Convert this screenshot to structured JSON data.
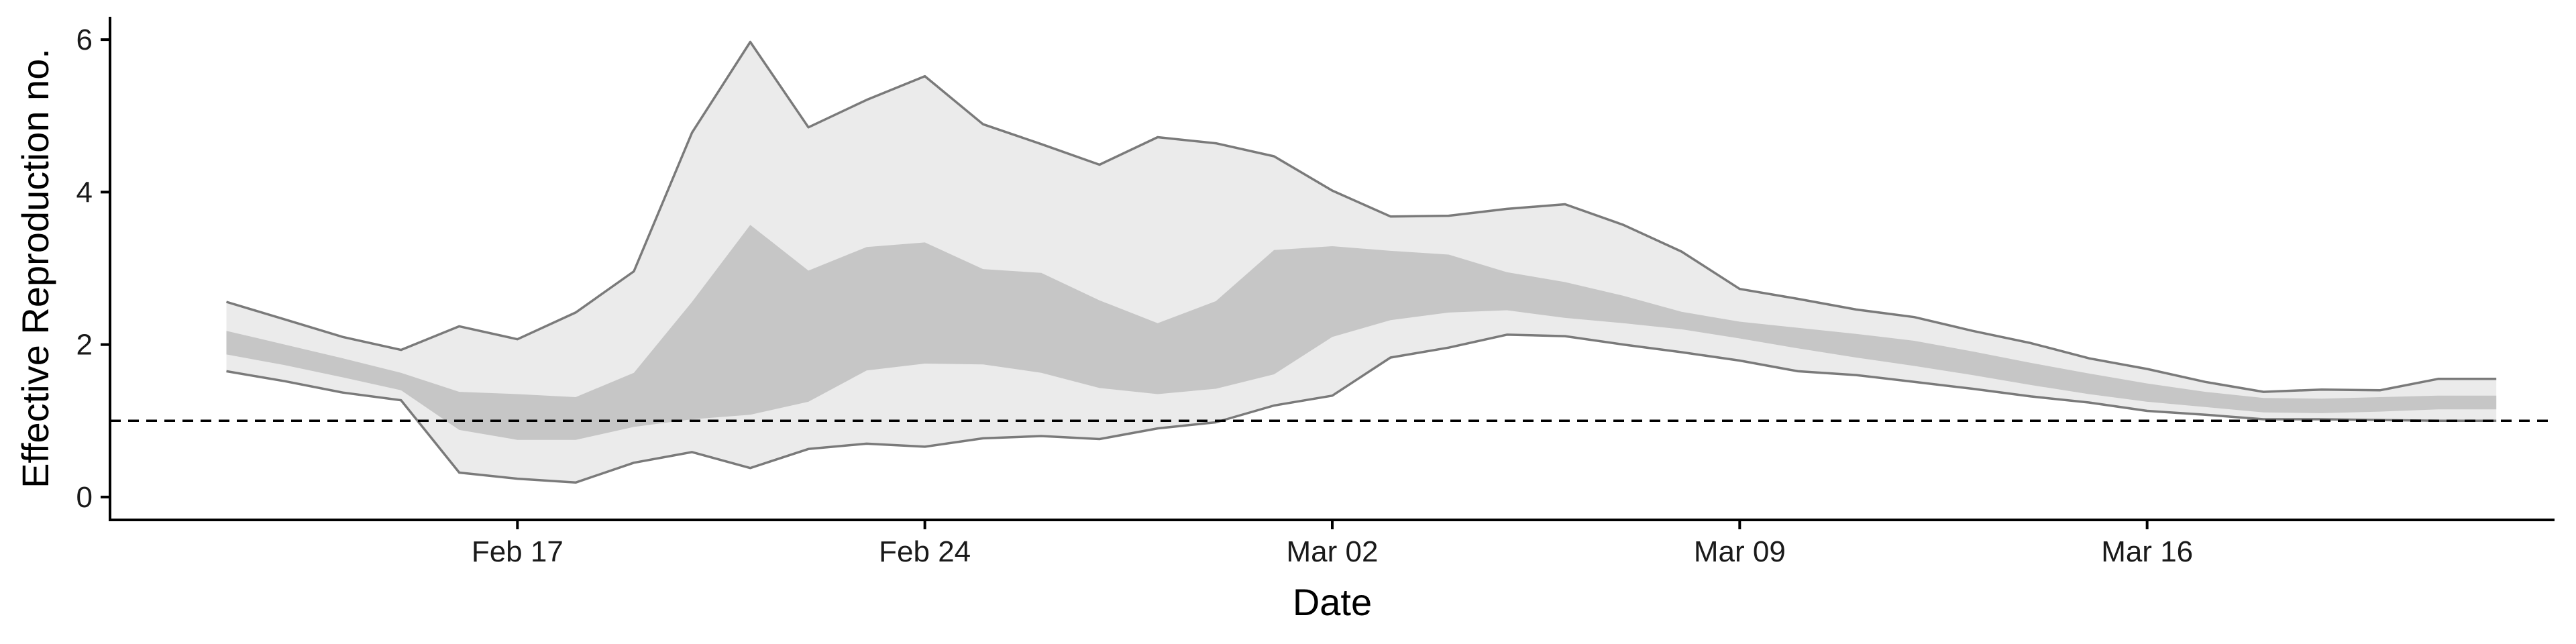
{
  "chart_data": {
    "type": "area",
    "xlabel": "Date",
    "ylabel": "Effective Reproduction no.",
    "x_tick_labels": [
      "Feb 17",
      "Feb 24",
      "Mar 02",
      "Mar 09",
      "Mar 16"
    ],
    "x_tick_dates": [
      "2020-02-17",
      "2020-02-24",
      "2020-03-02",
      "2020-03-09",
      "2020-03-16"
    ],
    "y_ticks": [
      0,
      2,
      4,
      6
    ],
    "ylim": [
      -0.3,
      6.3
    ],
    "xlim": [
      "2020-02-10",
      "2020-03-23"
    ],
    "reference_line": {
      "y": 1,
      "style": "dashed"
    },
    "grid": false,
    "x": [
      "2020-02-12",
      "2020-02-13",
      "2020-02-14",
      "2020-02-15",
      "2020-02-16",
      "2020-02-17",
      "2020-02-18",
      "2020-02-19",
      "2020-02-20",
      "2020-02-21",
      "2020-02-22",
      "2020-02-23",
      "2020-02-24",
      "2020-02-25",
      "2020-02-26",
      "2020-02-27",
      "2020-02-28",
      "2020-02-29",
      "2020-03-01",
      "2020-03-02",
      "2020-03-03",
      "2020-03-04",
      "2020-03-05",
      "2020-03-06",
      "2020-03-07",
      "2020-03-08",
      "2020-03-09",
      "2020-03-10",
      "2020-03-11",
      "2020-03-12",
      "2020-03-13",
      "2020-03-14",
      "2020-03-15",
      "2020-03-16",
      "2020-03-17",
      "2020-03-18",
      "2020-03-19",
      "2020-03-20",
      "2020-03-21",
      "2020-03-22"
    ],
    "series": [
      {
        "band": "outer",
        "color": "#ebebeb",
        "lower": [
          1.65,
          1.52,
          1.37,
          1.27,
          0.32,
          0.24,
          0.19,
          0.45,
          0.59,
          0.38,
          0.63,
          0.7,
          0.66,
          0.77,
          0.8,
          0.76,
          0.9,
          0.98,
          1.2,
          1.33,
          1.83,
          1.96,
          2.13,
          2.11,
          2.0,
          1.9,
          1.79,
          1.65,
          1.6,
          1.51,
          1.42,
          1.32,
          1.24,
          1.13,
          1.08,
          1.02,
          1.02,
          1.01,
          1.0,
          1.0
        ],
        "upper": [
          2.56,
          2.33,
          2.1,
          1.93,
          2.24,
          2.07,
          2.42,
          2.96,
          4.78,
          5.97,
          4.85,
          5.21,
          5.52,
          4.89,
          4.63,
          4.36,
          4.72,
          4.64,
          4.47,
          4.02,
          3.68,
          3.69,
          3.78,
          3.84,
          3.57,
          3.22,
          2.73,
          2.6,
          2.46,
          2.36,
          2.18,
          2.02,
          1.82,
          1.68,
          1.51,
          1.38,
          1.41,
          1.4,
          1.55,
          1.55
        ]
      },
      {
        "band": "inner",
        "color": "#c6c6c6",
        "lower": [
          1.87,
          1.73,
          1.57,
          1.4,
          0.88,
          0.75,
          0.75,
          0.92,
          1.02,
          1.08,
          1.25,
          1.66,
          1.75,
          1.74,
          1.63,
          1.43,
          1.35,
          1.42,
          1.61,
          2.1,
          2.32,
          2.42,
          2.45,
          2.35,
          2.28,
          2.2,
          2.08,
          1.95,
          1.83,
          1.72,
          1.6,
          1.47,
          1.35,
          1.25,
          1.18,
          1.11,
          1.1,
          1.12,
          1.15,
          1.15
        ],
        "upper": [
          2.18,
          2.0,
          1.82,
          1.63,
          1.38,
          1.35,
          1.31,
          1.63,
          2.56,
          3.57,
          2.97,
          3.28,
          3.34,
          2.99,
          2.94,
          2.58,
          2.28,
          2.57,
          3.24,
          3.29,
          3.23,
          3.18,
          2.95,
          2.82,
          2.64,
          2.43,
          2.3,
          2.22,
          2.14,
          2.05,
          1.91,
          1.76,
          1.62,
          1.49,
          1.38,
          1.3,
          1.29,
          1.31,
          1.33,
          1.33
        ]
      }
    ]
  }
}
